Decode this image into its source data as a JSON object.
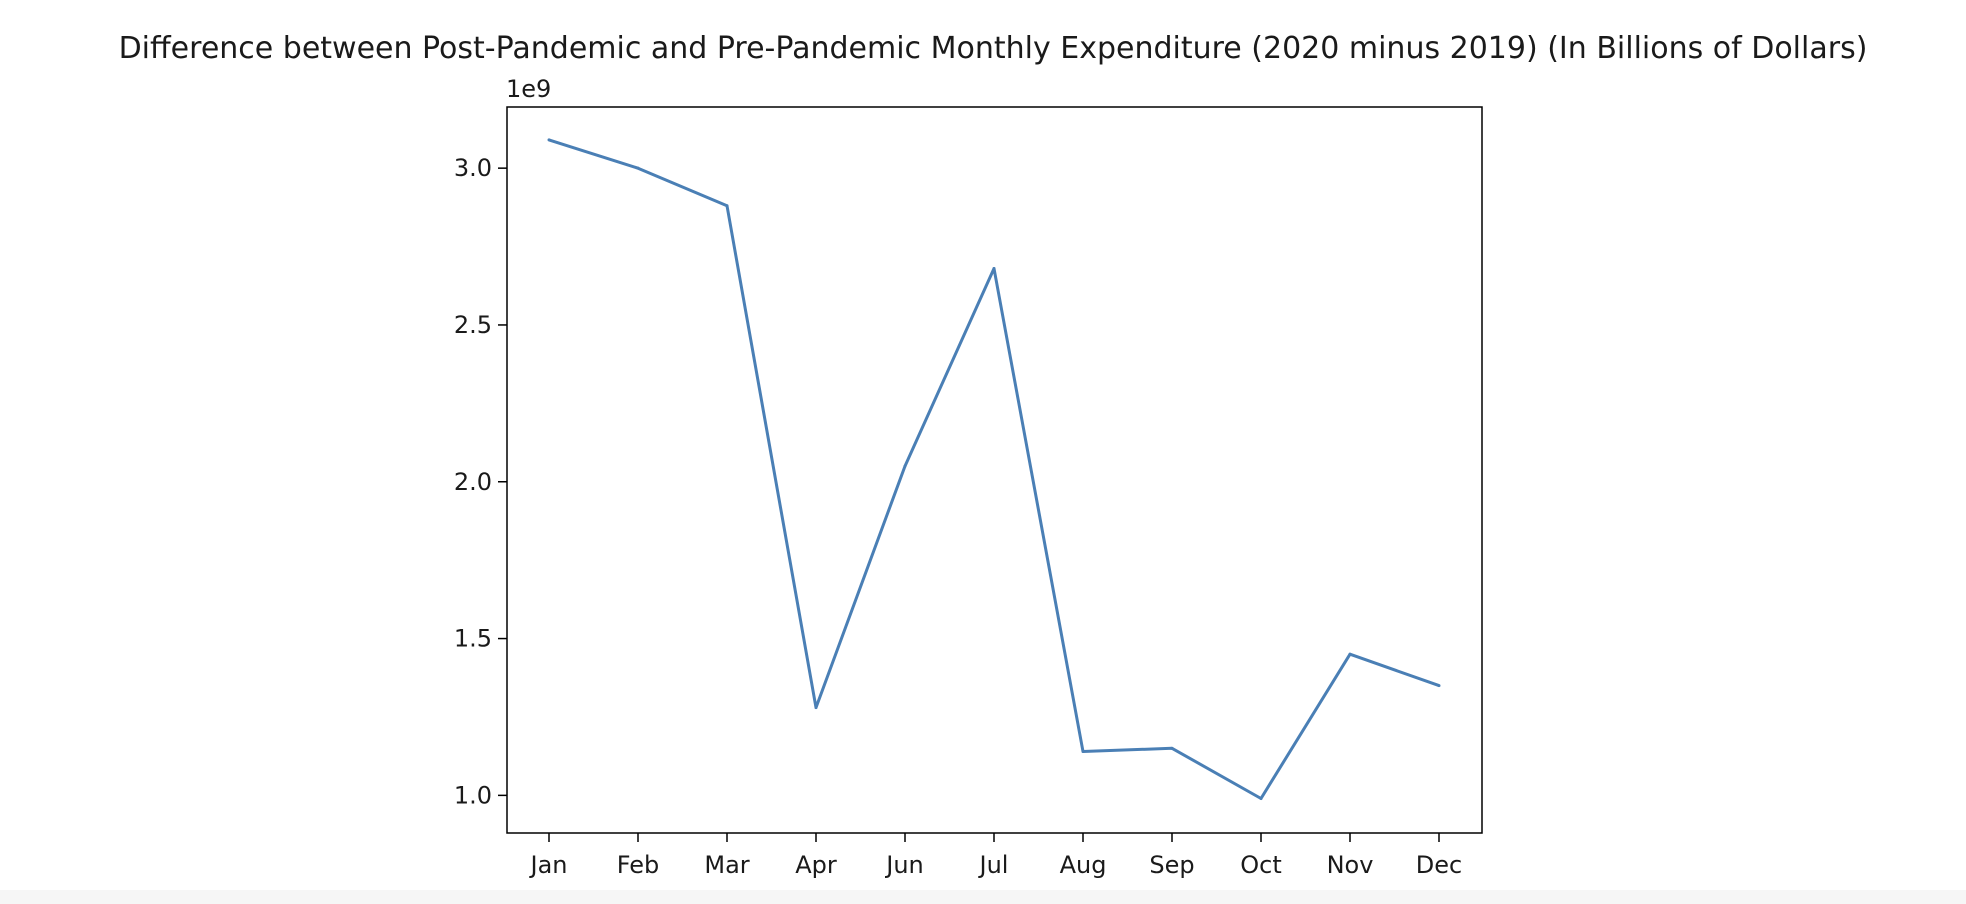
{
  "chart_data": {
    "type": "line",
    "title": "Difference between Post-Pandemic and Pre-Pandemic Monthly Expenditure (2020 minus 2019) (In Billions of Dollars)",
    "xlabel": "",
    "ylabel": "",
    "y_offset_label": "1e9",
    "categories": [
      "Jan",
      "Feb",
      "Mar",
      "Apr",
      "Jun",
      "Jul",
      "Aug",
      "Sep",
      "Oct",
      "Nov",
      "Dec"
    ],
    "series": [
      {
        "values": [
          3090000000.0,
          3000000000.0,
          2880000000.0,
          1280000000.0,
          2050000000.0,
          2680000000.0,
          1140000000.0,
          1150000000.0,
          990000000.0,
          1450000000.0,
          1350000000.0
        ],
        "color": "#4a7fb5"
      }
    ],
    "ylim": [
      880000000.0,
      3195000000.0
    ],
    "yticks": [
      1000000000.0,
      1500000000.0,
      2000000000.0,
      2500000000.0,
      3000000000.0
    ],
    "ytick_labels": [
      "1.0",
      "1.5",
      "2.0",
      "2.5",
      "3.0"
    ],
    "grid": false,
    "legend": "none"
  }
}
